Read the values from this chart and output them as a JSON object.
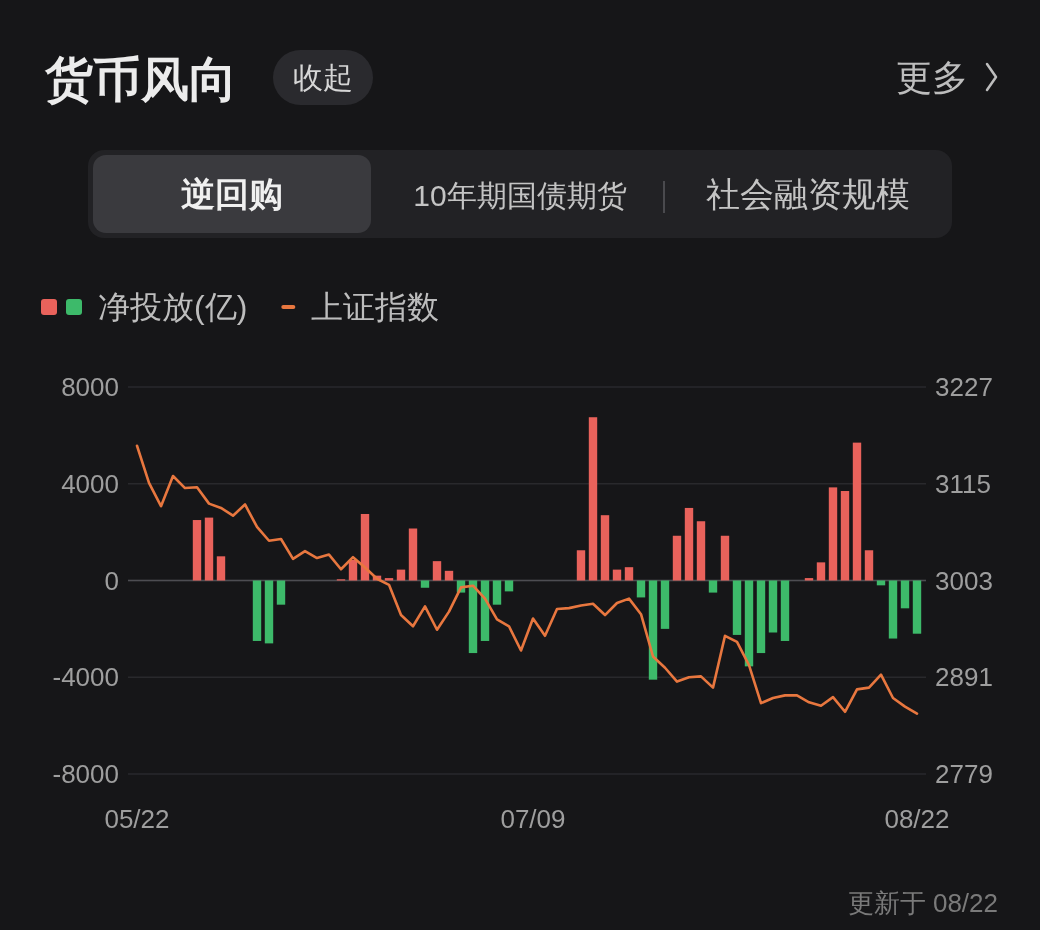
{
  "chart_data": {
    "type": "bar",
    "title": "货币风向",
    "subtitle": "逆回购",
    "annotations": [
      "收起",
      "更多",
      "10年期国债期货",
      "社会融资规模",
      "更新于 08/22"
    ],
    "categories": [
      "05/22",
      null,
      null,
      null,
      null,
      null,
      null,
      null,
      null,
      null,
      null,
      null,
      null,
      null,
      null,
      null,
      null,
      null,
      null,
      null,
      null,
      null,
      null,
      null,
      null,
      null,
      null,
      null,
      null,
      null,
      null,
      null,
      null,
      "07/09",
      null,
      null,
      null,
      null,
      null,
      null,
      null,
      null,
      null,
      null,
      null,
      null,
      null,
      null,
      null,
      null,
      null,
      null,
      null,
      null,
      null,
      null,
      null,
      null,
      null,
      null,
      null,
      null,
      null,
      null,
      null,
      "08/22"
    ],
    "series": [
      {
        "name": "净投放(亿)",
        "values": [
          null,
          null,
          null,
          null,
          null,
          2500,
          2600,
          1000,
          null,
          null,
          -2500,
          -2600,
          -1000,
          null,
          null,
          null,
          null,
          50,
          850,
          2750,
          200,
          100,
          450,
          2150,
          -300,
          800,
          400,
          -500,
          -3000,
          -2500,
          -1000,
          -450,
          null,
          null,
          null,
          null,
          null,
          1250,
          6750,
          2700,
          450,
          550,
          -700,
          -4100,
          -2000,
          1850,
          3000,
          2450,
          -500,
          1850,
          -2250,
          -3550,
          -3000,
          -2150,
          -2500,
          null,
          100,
          750,
          3850,
          3700,
          5700,
          1250,
          -200,
          -2400,
          -1150,
          -2200
        ],
        "colors": [
          null,
          null,
          null,
          null,
          null,
          "#e9625b",
          "#e9625b",
          "#e9625b",
          null,
          null,
          "#3dba6a",
          "#3dba6a",
          "#3dba6a",
          null,
          null,
          null,
          null,
          "#e9625b",
          "#e9625b",
          "#e9625b",
          "#e9625b",
          "#e9625b",
          "#e9625b",
          "#e9625b",
          "#3dba6a",
          "#e9625b",
          "#e9625b",
          "#3dba6a",
          "#3dba6a",
          "#3dba6a",
          "#3dba6a",
          "#3dba6a",
          null,
          null,
          null,
          null,
          null,
          "#e9625b",
          "#e9625b",
          "#e9625b",
          "#e9625b",
          "#e9625b",
          "#3dba6a",
          "#3dba6a",
          "#3dba6a",
          "#e9625b",
          "#e9625b",
          "#e9625b",
          "#3dba6a",
          "#e9625b",
          "#3dba6a",
          "#3dba6a",
          "#3dba6a",
          "#3dba6a",
          "#3dba6a",
          null,
          "#e9625b",
          "#e9625b",
          "#e9625b",
          "#e9625b",
          "#e9625b",
          "#e9625b",
          "#3dba6a",
          "#3dba6a",
          "#3dba6a",
          "#3dba6a"
        ]
      },
      {
        "name": "上证指数",
        "type": "line",
        "axis": "y2",
        "color": "#e8773f",
        "values": [
          3159,
          3116,
          3089,
          3124,
          3110,
          3111,
          3092,
          3087,
          3078,
          3091,
          3065,
          3049,
          3051,
          3028,
          3037,
          3029,
          3033,
          3016,
          3030,
          3018,
          3005,
          2998,
          2963,
          2950,
          2973,
          2946,
          2967,
          2995,
          2997,
          2982,
          2958,
          2950,
          2922,
          2959,
          2939,
          2970,
          2971,
          2974,
          2976,
          2963,
          2977,
          2982,
          2964,
          2915,
          2902,
          2886,
          2891,
          2892,
          2879,
          2939,
          2932,
          2905,
          2861,
          2867,
          2870,
          2870,
          2862,
          2858,
          2868,
          2851,
          2877,
          2879,
          2894,
          2867,
          2857,
          2849
        ]
      }
    ],
    "ylim": [
      -8000,
      8000
    ],
    "yticks": [
      -8000,
      -4000,
      0,
      4000,
      8000
    ],
    "y2lim": [
      2779,
      3227
    ],
    "y2ticks": [
      2779,
      2891,
      3003,
      3115,
      3227
    ],
    "grid": "y",
    "legend": "top left"
  }
}
